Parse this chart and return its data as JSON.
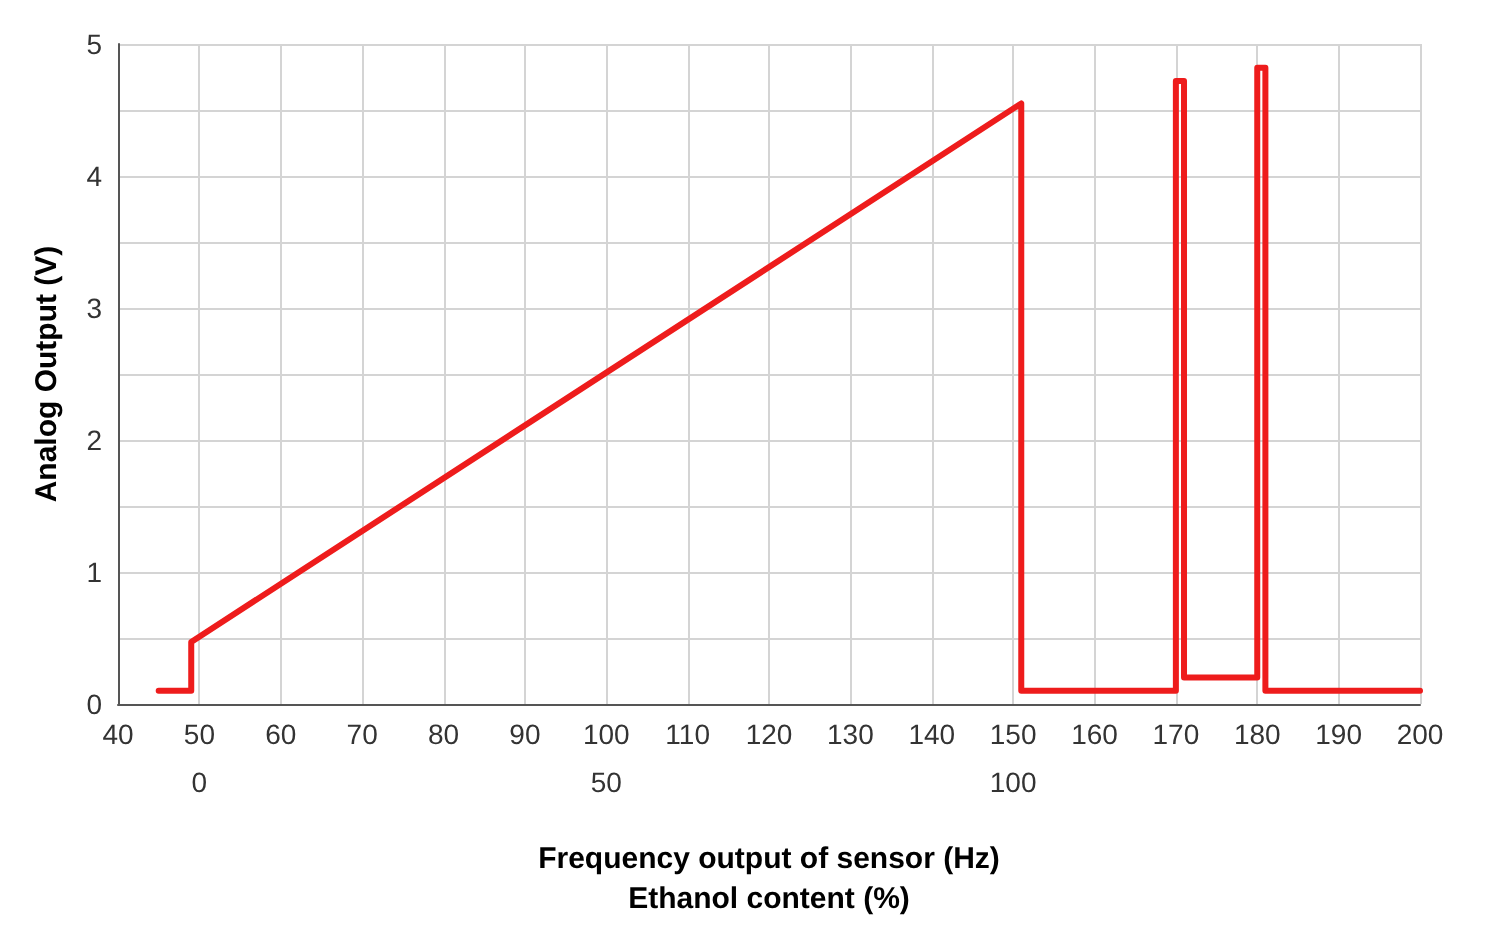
{
  "chart_data": {
    "type": "line",
    "xlabel": "Frequency output of sensor (Hz)",
    "x2label": "Ethanol content (%)",
    "ylabel": "Analog Output (V)",
    "xlim": [
      40,
      200
    ],
    "xticks": [
      40,
      50,
      60,
      70,
      80,
      90,
      100,
      110,
      120,
      130,
      140,
      150,
      160,
      170,
      180,
      190,
      200
    ],
    "x2lim": [
      -10,
      150
    ],
    "x2ticks": [
      0,
      50,
      100
    ],
    "ylim": [
      0,
      5
    ],
    "yticks": [
      0,
      {
        "value": 0.5,
        "label": null
      },
      1,
      {
        "value": 1.5,
        "label": null
      },
      2,
      {
        "value": 2.5,
        "label": null
      },
      3,
      {
        "value": 3.5,
        "label": null
      },
      4,
      {
        "value": 4.5,
        "label": null
      },
      5
    ],
    "grid": true,
    "marker": "none",
    "line_style": "solid",
    "series": [
      {
        "color": "#ee1c1c",
        "x": [
          45,
          49,
          49,
          151,
          151,
          170,
          170,
          171,
          171,
          180,
          180,
          181,
          181,
          200
        ],
        "values": [
          0.1,
          0.1,
          0.47,
          4.55,
          0.1,
          0.1,
          4.72,
          4.72,
          0.2,
          0.2,
          4.82,
          4.82,
          0.1,
          0.1
        ]
      }
    ]
  }
}
